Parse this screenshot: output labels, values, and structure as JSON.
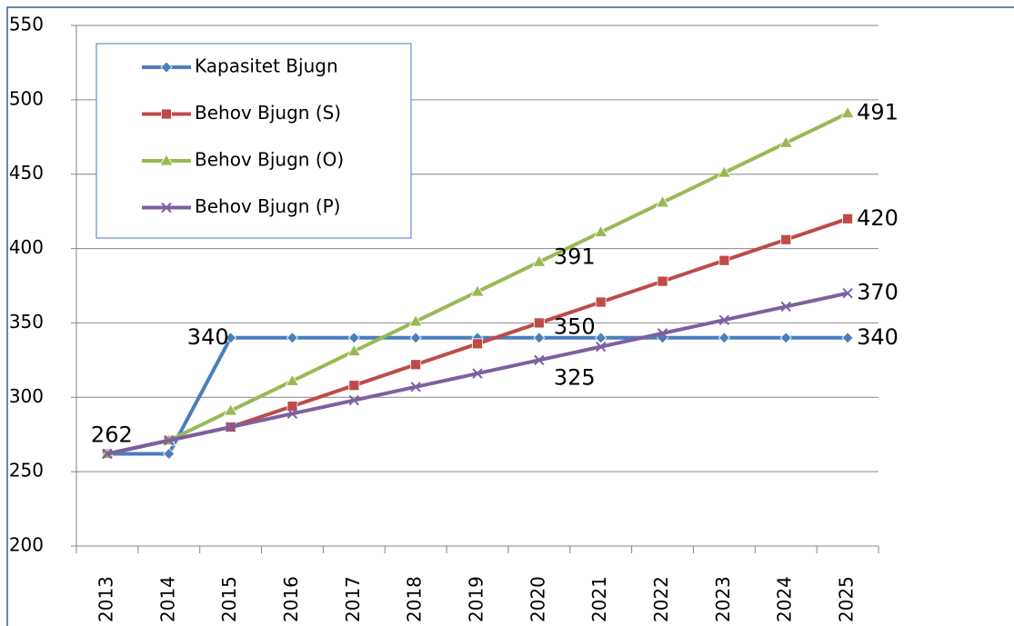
{
  "chart_data": {
    "type": "line",
    "categories": [
      "2013",
      "2014",
      "2015",
      "2016",
      "2017",
      "2018",
      "2019",
      "2020",
      "2021",
      "2022",
      "2023",
      "2024",
      "2025"
    ],
    "series": [
      {
        "name": "Kapasitet Bjugn",
        "color": "#4a7ebb",
        "marker": "diamond",
        "values": [
          262,
          262,
          340,
          340,
          340,
          340,
          340,
          340,
          340,
          340,
          340,
          340,
          340
        ],
        "data_labels": [
          0,
          2,
          12
        ]
      },
      {
        "name": "Behov Bjugn (S)",
        "color": "#be4b48",
        "marker": "square",
        "values": [
          262,
          271,
          280,
          294,
          308,
          322,
          336,
          350,
          364,
          378,
          392,
          406,
          420
        ],
        "data_labels": [
          7,
          12
        ]
      },
      {
        "name": "Behov Bjugn (O)",
        "color": "#98b954",
        "marker": "triangle",
        "values": [
          262,
          271,
          291,
          311,
          331,
          351,
          371,
          391,
          411,
          431,
          451,
          471,
          491
        ],
        "data_labels": [
          7,
          12
        ]
      },
      {
        "name": "Behov Bjugn (P)",
        "color": "#7d60a0",
        "marker": "x",
        "values": [
          262,
          271,
          280,
          289,
          298,
          307,
          316,
          325,
          334,
          343,
          352,
          361,
          370
        ],
        "data_labels": [
          7,
          12
        ]
      }
    ],
    "ylim": [
      200,
      550
    ],
    "yticks": [
      200,
      250,
      300,
      350,
      400,
      450,
      500,
      550
    ],
    "grid": true,
    "legend": "upper left"
  }
}
